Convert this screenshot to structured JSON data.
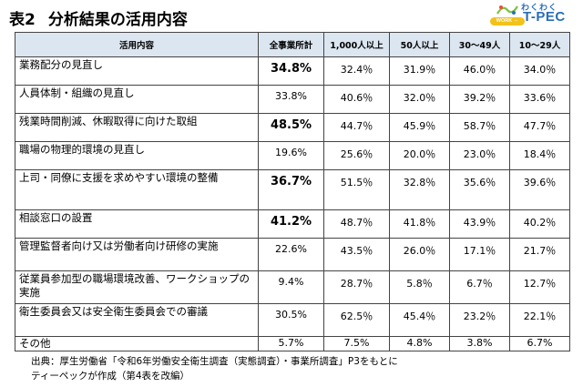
{
  "title": {
    "label": "表2",
    "text": "分析結果の活用内容"
  },
  "logo": {
    "small": "わくわく",
    "main": "T-PEC",
    "badge": "WORK ⇔ BEING"
  },
  "table": {
    "headers": [
      "活用内容",
      "全事業所計",
      "1,000人以上",
      "50人以上",
      "30～49人",
      "10～29人"
    ],
    "rows": [
      {
        "item": "業務配分の見直し",
        "values": [
          "34.8%",
          "32.4％",
          "31.9％",
          "46.0％",
          "34.0％"
        ],
        "bold": true
      },
      {
        "item": "人員体制・組織の見直し",
        "values": [
          "33.8%",
          "40.6％",
          "32.0％",
          "39.2％",
          "33.6％"
        ],
        "bold": false
      },
      {
        "item": "残業時間削減、休暇取得に向けた取組",
        "values": [
          "48.5%",
          "44.7％",
          "45.9％",
          "58.7％",
          "47.7％"
        ],
        "bold": true
      },
      {
        "item": "職場の物理的環境の見直し",
        "values": [
          "19.6%",
          "25.6％",
          "20.0％",
          "23.0％",
          "18.4％"
        ],
        "bold": false
      },
      {
        "item": "上司・同僚に支援を求めやすい環境の整備",
        "values": [
          "36.7%",
          "51.5％",
          "32.8％",
          "35.6％",
          "39.6％"
        ],
        "bold": true
      },
      {
        "item": "相談窓口の設置",
        "values": [
          "41.2%",
          "48.7％",
          "41.8％",
          "43.9％",
          "40.2％"
        ],
        "bold": true
      },
      {
        "item": "管理監督者向け又は労働者向け研修の実施",
        "values": [
          "22.6%",
          "43.5％",
          "26.0％",
          "17.1％",
          "21.7％"
        ],
        "bold": false
      },
      {
        "item": "従業員参加型の職場環境改善、ワークショップの実施",
        "values": [
          "9.4%",
          "28.7％",
          "5.8％",
          "6.7％",
          "12.7％"
        ],
        "bold": false
      },
      {
        "item": "衛生委員会又は安全衛生委員会での審議",
        "values": [
          "30.5%",
          "62.5％",
          "45.4％",
          "23.2％",
          "22.1％"
        ],
        "bold": false
      },
      {
        "item": "その他",
        "values": [
          "5.7%",
          "7.5%",
          "4.8%",
          "3.8%",
          "6.7%"
        ],
        "bold": false
      }
    ]
  },
  "source": {
    "line1": "出典：厚生労働省「令和6年労働安全衛生調査（実態調査）・事業所調査」P3をもとに",
    "line2": "ティーペックが作成（第4表を改編）"
  }
}
